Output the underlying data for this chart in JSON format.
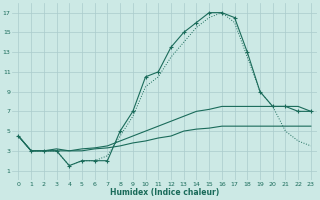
{
  "xlabel": "Humidex (Indice chaleur)",
  "background_color": "#cce9e5",
  "grid_color": "#aacccc",
  "line_color": "#1a6b5a",
  "xlim": [
    -0.5,
    23.5
  ],
  "ylim": [
    0,
    18
  ],
  "xticks": [
    0,
    1,
    2,
    3,
    4,
    5,
    6,
    7,
    8,
    9,
    10,
    11,
    12,
    13,
    14,
    15,
    16,
    17,
    18,
    19,
    20,
    21,
    22,
    23
  ],
  "yticks": [
    1,
    3,
    5,
    7,
    9,
    11,
    13,
    15,
    17
  ],
  "curves": [
    {
      "x": [
        0,
        1,
        2,
        3,
        4,
        5,
        6,
        7,
        8,
        9,
        10,
        11,
        12,
        13,
        14,
        15,
        16,
        17,
        18,
        19,
        20,
        21,
        22,
        23
      ],
      "y": [
        4.5,
        3.0,
        3.0,
        3.0,
        1.5,
        2.0,
        2.0,
        2.0,
        5.0,
        7.0,
        10.5,
        11.0,
        13.5,
        15.0,
        16.0,
        17.0,
        17.0,
        16.5,
        13.0,
        9.0,
        7.5,
        7.5,
        7.0,
        7.0
      ],
      "style": "solid",
      "marker": "+"
    },
    {
      "x": [
        0,
        1,
        2,
        3,
        4,
        5,
        6,
        7,
        8,
        9,
        10,
        11,
        12,
        13,
        14,
        15,
        16,
        17,
        18,
        19,
        20,
        21,
        22,
        23
      ],
      "y": [
        4.5,
        3.0,
        3.0,
        3.0,
        1.5,
        2.0,
        2.0,
        2.5,
        4.5,
        6.5,
        9.5,
        10.5,
        12.5,
        14.0,
        15.5,
        16.5,
        17.0,
        16.0,
        12.5,
        9.0,
        7.5,
        5.0,
        4.0,
        3.5
      ],
      "style": "dotted",
      "marker": null
    },
    {
      "x": [
        0,
        1,
        2,
        3,
        4,
        5,
        6,
        7,
        8,
        9,
        10,
        11,
        12,
        13,
        14,
        15,
        16,
        17,
        18,
        19,
        20,
        21,
        22,
        23
      ],
      "y": [
        4.5,
        3.0,
        3.0,
        3.2,
        3.0,
        3.2,
        3.3,
        3.5,
        4.0,
        4.5,
        5.0,
        5.5,
        6.0,
        6.5,
        7.0,
        7.2,
        7.5,
        7.5,
        7.5,
        7.5,
        7.5,
        7.5,
        7.5,
        7.0
      ],
      "style": "solid",
      "marker": null
    },
    {
      "x": [
        0,
        1,
        2,
        3,
        4,
        5,
        6,
        7,
        8,
        9,
        10,
        11,
        12,
        13,
        14,
        15,
        16,
        17,
        18,
        19,
        20,
        21,
        22,
        23
      ],
      "y": [
        4.5,
        3.0,
        3.0,
        3.0,
        3.0,
        3.0,
        3.2,
        3.3,
        3.5,
        3.8,
        4.0,
        4.3,
        4.5,
        5.0,
        5.2,
        5.3,
        5.5,
        5.5,
        5.5,
        5.5,
        5.5,
        5.5,
        5.5,
        5.5
      ],
      "style": "solid",
      "marker": null
    }
  ]
}
